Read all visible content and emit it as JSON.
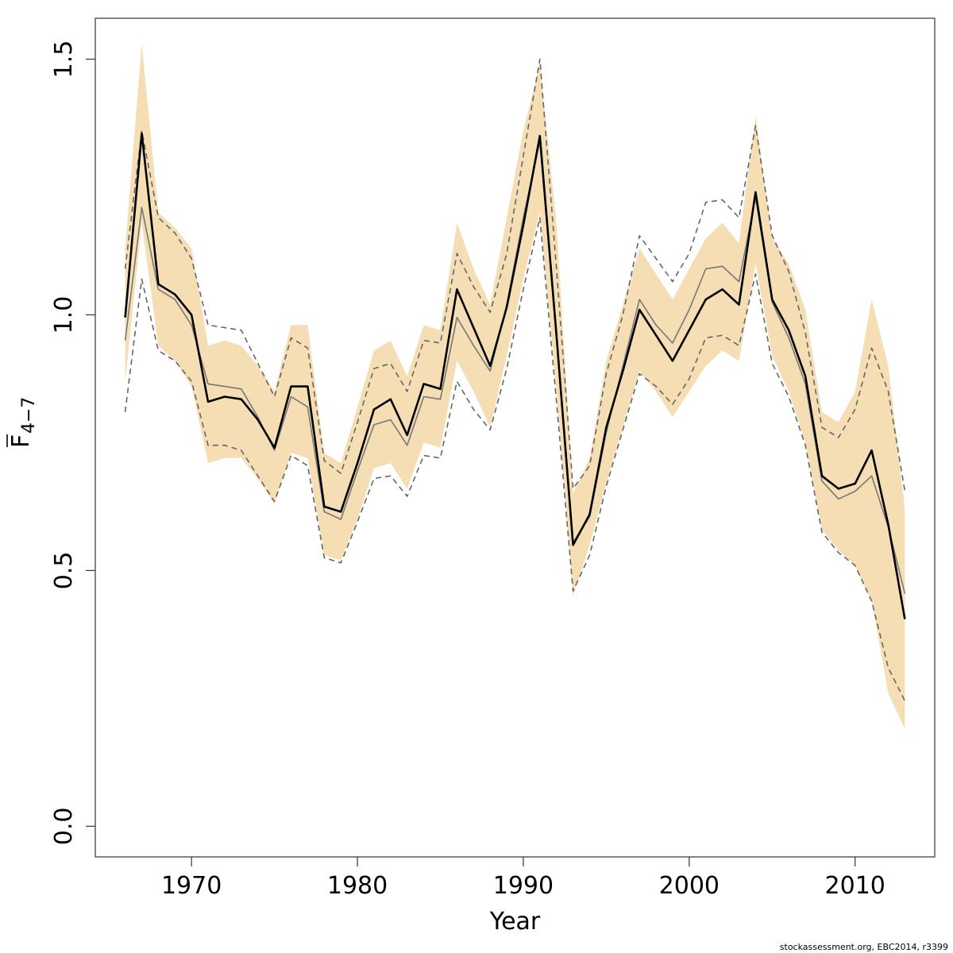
{
  "chart_data": {
    "type": "line",
    "xlabel": "Year",
    "ylabel": {
      "main": "F",
      "subscript": "4−7"
    },
    "xlim": [
      1964.2,
      2014.8
    ],
    "ylim": [
      -0.06,
      1.58
    ],
    "xticks": [
      1970,
      1980,
      1990,
      2000,
      2010
    ],
    "yticks": [
      0.0,
      0.5,
      1.0,
      1.5
    ],
    "ytick_labels": [
      "0.0",
      "0.5",
      "1.0",
      "1.5"
    ],
    "x": [
      1966,
      1967,
      1968,
      1969,
      1970,
      1971,
      1972,
      1973,
      1974,
      1975,
      1976,
      1977,
      1978,
      1979,
      1980,
      1981,
      1982,
      1983,
      1984,
      1985,
      1986,
      1987,
      1988,
      1989,
      1990,
      1991,
      1992,
      1993,
      1994,
      1995,
      1996,
      1997,
      1998,
      1999,
      2000,
      2001,
      2002,
      2003,
      2004,
      2005,
      2006,
      2007,
      2008,
      2009,
      2010,
      2011,
      2012,
      2013
    ],
    "band": {
      "color": "#f5deb3",
      "lower": [
        0.87,
        1.18,
        0.94,
        0.91,
        0.86,
        0.71,
        0.72,
        0.72,
        0.68,
        0.63,
        0.73,
        0.72,
        0.53,
        0.52,
        0.6,
        0.7,
        0.71,
        0.66,
        0.75,
        0.74,
        0.91,
        0.85,
        0.78,
        0.92,
        1.07,
        1.2,
        0.85,
        0.45,
        0.55,
        0.67,
        0.78,
        0.89,
        0.85,
        0.8,
        0.85,
        0.9,
        0.93,
        0.91,
        1.1,
        0.92,
        0.85,
        0.75,
        0.58,
        0.54,
        0.51,
        0.44,
        0.26,
        0.19
      ],
      "upper": [
        1.13,
        1.53,
        1.2,
        1.17,
        1.13,
        0.94,
        0.95,
        0.94,
        0.9,
        0.85,
        0.98,
        0.98,
        0.73,
        0.71,
        0.82,
        0.93,
        0.95,
        0.88,
        0.98,
        0.97,
        1.18,
        1.09,
        1.02,
        1.19,
        1.36,
        1.49,
        1.18,
        0.65,
        0.72,
        0.91,
        1.02,
        1.13,
        1.08,
        1.03,
        1.09,
        1.15,
        1.18,
        1.14,
        1.39,
        1.15,
        1.1,
        1.01,
        0.81,
        0.79,
        0.85,
        1.03,
        0.9,
        0.62
      ]
    },
    "series": [
      {
        "color": "#000000",
        "style": "solid-thick",
        "values": [
          0.995,
          1.355,
          1.06,
          1.04,
          1.0,
          0.83,
          0.84,
          0.835,
          0.795,
          0.74,
          0.86,
          0.86,
          0.625,
          0.615,
          0.71,
          0.815,
          0.835,
          0.765,
          0.865,
          0.855,
          1.05,
          0.975,
          0.9,
          1.015,
          1.175,
          1.35,
          0.96,
          0.55,
          0.61,
          0.78,
          0.89,
          1.01,
          0.96,
          0.91,
          0.97,
          1.03,
          1.05,
          1.02,
          1.24,
          1.03,
          0.97,
          0.88,
          0.685,
          0.66,
          0.67,
          0.735,
          0.59,
          0.405
        ]
      },
      {
        "color": "#777777",
        "style": "solid-thin",
        "values": [
          0.95,
          1.21,
          1.05,
          1.03,
          0.98,
          0.865,
          0.86,
          0.855,
          0.8,
          0.735,
          0.84,
          0.82,
          0.615,
          0.6,
          0.695,
          0.785,
          0.795,
          0.745,
          0.84,
          0.835,
          0.995,
          0.94,
          0.89,
          1.02,
          1.19,
          1.34,
          0.955,
          0.555,
          0.605,
          0.77,
          0.9,
          1.03,
          0.98,
          0.945,
          1.01,
          1.09,
          1.095,
          1.065,
          1.23,
          1.025,
          0.955,
          0.865,
          0.675,
          0.64,
          0.655,
          0.685,
          0.585,
          0.455
        ]
      },
      {
        "color": "#666666",
        "style": "dashed-upper",
        "values": [
          1.09,
          1.36,
          1.19,
          1.16,
          1.11,
          0.98,
          0.975,
          0.97,
          0.905,
          0.84,
          0.955,
          0.935,
          0.715,
          0.69,
          0.79,
          0.895,
          0.905,
          0.85,
          0.95,
          0.945,
          1.12,
          1.055,
          1.005,
          1.12,
          1.31,
          1.5,
          1.09,
          0.66,
          0.705,
          0.885,
          1.0,
          1.155,
          1.11,
          1.065,
          1.12,
          1.22,
          1.225,
          1.19,
          1.37,
          1.155,
          1.085,
          0.965,
          0.78,
          0.76,
          0.815,
          0.935,
          0.85,
          0.655
        ]
      },
      {
        "color": "#666666",
        "style": "dashed-lower",
        "values": [
          0.81,
          1.07,
          0.93,
          0.91,
          0.87,
          0.745,
          0.745,
          0.735,
          0.685,
          0.635,
          0.725,
          0.705,
          0.525,
          0.515,
          0.595,
          0.68,
          0.685,
          0.645,
          0.725,
          0.72,
          0.87,
          0.815,
          0.775,
          0.895,
          1.05,
          1.19,
          0.83,
          0.46,
          0.53,
          0.665,
          0.775,
          0.885,
          0.86,
          0.825,
          0.875,
          0.955,
          0.96,
          0.94,
          1.08,
          0.905,
          0.84,
          0.745,
          0.575,
          0.535,
          0.51,
          0.44,
          0.31,
          0.245
        ]
      }
    ]
  },
  "footer": {
    "credit": "stockassessment.org, EBC2014, r3399"
  }
}
